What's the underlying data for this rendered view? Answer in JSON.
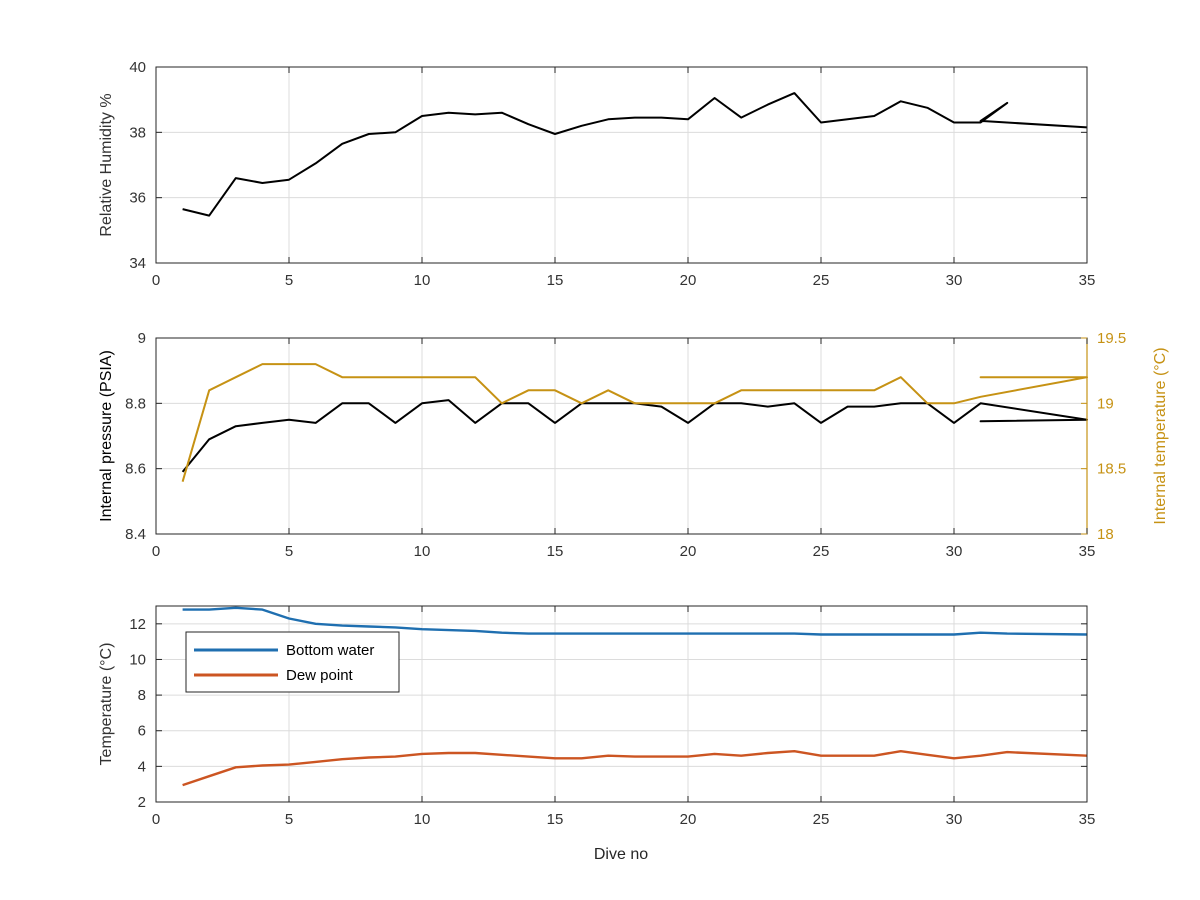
{
  "figure": {
    "xlabel": "Dive no",
    "colors": {
      "black": "#000000",
      "orange": "#c69214",
      "blue": "#1f6fb0",
      "red": "#cc5522",
      "grid": "#dcdcdc",
      "axis": "#262626",
      "tick_label": "#333333"
    }
  },
  "chart_data": [
    {
      "type": "line",
      "title": "",
      "xlabel": "",
      "ylabel": "Relative Humidity %",
      "xlim": [
        0,
        35
      ],
      "ylim": [
        34,
        40
      ],
      "xticks": [
        0,
        5,
        10,
        15,
        20,
        25,
        30,
        35
      ],
      "yticks": [
        34,
        36,
        38,
        40
      ],
      "grid": true,
      "series": [
        {
          "color": "#000000",
          "x": [
            1,
            2,
            3,
            4,
            5,
            6,
            7,
            8,
            9,
            10,
            11,
            12,
            13,
            14,
            15,
            16,
            17,
            18,
            19,
            20,
            21,
            22,
            23,
            24,
            25,
            26,
            27,
            28,
            29,
            30,
            31,
            32,
            31,
            35
          ],
          "y": [
            35.65,
            35.45,
            36.6,
            36.45,
            36.55,
            37.05,
            37.65,
            37.95,
            38.0,
            38.5,
            38.6,
            38.55,
            38.6,
            38.25,
            37.95,
            38.2,
            38.4,
            38.45,
            38.45,
            38.4,
            39.05,
            38.45,
            38.85,
            39.2,
            38.3,
            38.4,
            38.5,
            38.95,
            38.75,
            38.3,
            38.3,
            38.9,
            38.35,
            38.15
          ]
        }
      ]
    },
    {
      "type": "line",
      "title": "",
      "xlabel": "",
      "ylabel": "Internal pressure (PSIA)",
      "ylabel_right": "Internal temperature (°C)",
      "xlim": [
        0,
        35
      ],
      "ylim": [
        8.4,
        9
      ],
      "ylim_right": [
        18,
        19.5
      ],
      "xticks": [
        0,
        5,
        10,
        15,
        20,
        25,
        30,
        35
      ],
      "yticks": [
        8.4,
        8.6,
        8.8,
        9
      ],
      "yticks_right": [
        18,
        18.5,
        19,
        19.5
      ],
      "grid": true,
      "series": [
        {
          "axis": "left",
          "color": "#000000",
          "x": [
            1,
            2,
            3,
            4,
            5,
            6,
            7,
            8,
            9,
            10,
            11,
            12,
            13,
            14,
            15,
            16,
            17,
            18,
            19,
            20,
            21,
            22,
            23,
            24,
            25,
            26,
            27,
            28,
            29,
            30,
            31,
            35,
            31,
            35
          ],
          "y": [
            8.59,
            8.69,
            8.73,
            8.74,
            8.75,
            8.74,
            8.8,
            8.8,
            8.74,
            8.8,
            8.81,
            8.74,
            8.8,
            8.8,
            8.74,
            8.8,
            8.8,
            8.8,
            8.79,
            8.74,
            8.8,
            8.8,
            8.79,
            8.8,
            8.74,
            8.79,
            8.79,
            8.8,
            8.8,
            8.74,
            8.8,
            8.75,
            8.745,
            8.75
          ]
        },
        {
          "axis": "right",
          "color": "#c69214",
          "x": [
            1,
            2,
            3,
            4,
            5,
            6,
            7,
            8,
            9,
            10,
            11,
            12,
            13,
            14,
            15,
            16,
            17,
            18,
            19,
            20,
            21,
            22,
            23,
            24,
            25,
            26,
            27,
            28,
            29,
            30,
            31,
            35,
            31,
            35
          ],
          "y": [
            18.4,
            19.1,
            19.2,
            19.3,
            19.3,
            19.3,
            19.2,
            19.2,
            19.2,
            19.2,
            19.2,
            19.2,
            19.0,
            19.1,
            19.1,
            19.0,
            19.1,
            19.0,
            19.0,
            19.0,
            19.0,
            19.1,
            19.1,
            19.1,
            19.1,
            19.1,
            19.1,
            19.2,
            19.0,
            19.0,
            19.05,
            19.2,
            19.2,
            19.2
          ]
        }
      ]
    },
    {
      "type": "line",
      "title": "",
      "xlabel": "Dive no",
      "ylabel": "Temperature (°C)",
      "xlim": [
        0,
        35
      ],
      "ylim": [
        2,
        13
      ],
      "xticks": [
        0,
        5,
        10,
        15,
        20,
        25,
        30,
        35
      ],
      "yticks": [
        2,
        4,
        6,
        8,
        10,
        12
      ],
      "grid": true,
      "legend": {
        "position": "top-left"
      },
      "series": [
        {
          "name": "Bottom water",
          "color": "#1f6fb0",
          "x": [
            1,
            2,
            3,
            4,
            5,
            6,
            7,
            8,
            9,
            10,
            11,
            12,
            13,
            14,
            15,
            16,
            17,
            18,
            19,
            20,
            21,
            22,
            23,
            24,
            25,
            26,
            27,
            28,
            29,
            30,
            31,
            32,
            35
          ],
          "y": [
            12.8,
            12.8,
            12.9,
            12.8,
            12.3,
            12.0,
            11.9,
            11.85,
            11.8,
            11.7,
            11.65,
            11.6,
            11.5,
            11.45,
            11.45,
            11.45,
            11.45,
            11.45,
            11.45,
            11.45,
            11.45,
            11.45,
            11.45,
            11.45,
            11.4,
            11.4,
            11.4,
            11.4,
            11.4,
            11.4,
            11.5,
            11.45,
            11.4
          ]
        },
        {
          "name": "Dew point",
          "color": "#cc5522",
          "x": [
            1,
            2,
            3,
            4,
            5,
            6,
            7,
            8,
            9,
            10,
            11,
            12,
            13,
            14,
            15,
            16,
            17,
            18,
            19,
            20,
            21,
            22,
            23,
            24,
            25,
            26,
            27,
            28,
            29,
            30,
            31,
            32,
            35
          ],
          "y": [
            2.95,
            3.45,
            3.95,
            4.05,
            4.1,
            4.25,
            4.4,
            4.5,
            4.55,
            4.7,
            4.75,
            4.75,
            4.65,
            4.55,
            4.45,
            4.45,
            4.6,
            4.55,
            4.55,
            4.55,
            4.7,
            4.6,
            4.75,
            4.85,
            4.6,
            4.6,
            4.6,
            4.85,
            4.65,
            4.45,
            4.6,
            4.8,
            4.6
          ]
        }
      ]
    }
  ]
}
